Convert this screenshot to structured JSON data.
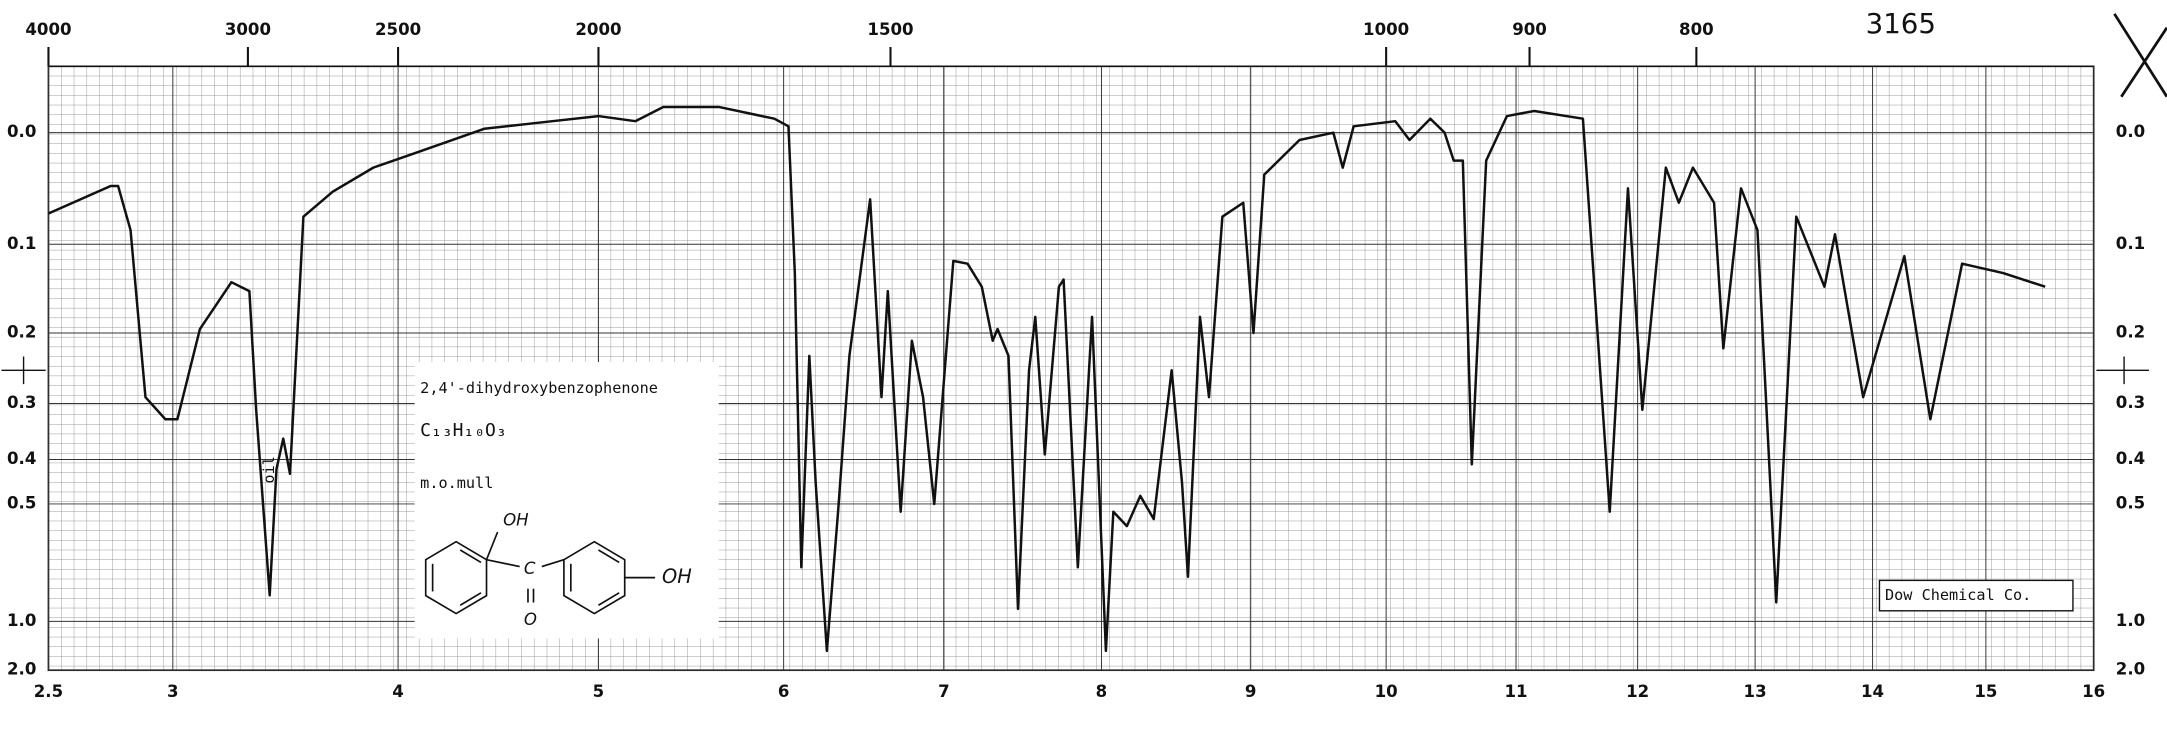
{
  "chart_data": {
    "type": "line",
    "annotations": {
      "catalog_number": "3165",
      "compound": "2,4'-dihydroxybenzophenone",
      "formula": "C₁₃H₁₀O₃",
      "sample": "m.o.mull",
      "oil_label": "oil",
      "source": "Dow Chemical Co.",
      "structure_labels": [
        "OH",
        "OH",
        "C",
        "O"
      ]
    },
    "yscale": "absorbance",
    "grid": true,
    "xlim": [
      2.5,
      16
    ],
    "xticks": [
      2.5,
      3,
      4,
      5,
      6,
      7,
      8,
      9,
      10,
      11,
      12,
      13,
      14,
      15,
      16
    ],
    "x2ticks": [
      4000,
      3000,
      2500,
      2000,
      1500,
      1000,
      900,
      800
    ],
    "ylim": [
      -0.05,
      2
    ],
    "yticks": [
      {
        "value": 0,
        "label": "0.0"
      },
      0.1,
      0.2,
      0.3,
      0.4,
      0.5,
      {
        "value": 1,
        "label": "1.0"
      },
      {
        "value": 2,
        "label": "2.0"
      }
    ],
    "x": [
      2.5,
      2.75,
      2.78,
      2.83,
      2.89,
      2.97,
      3.02,
      3.12,
      3.26,
      3.34,
      3.37,
      3.43,
      3.46,
      3.49,
      3.52,
      3.58,
      3.71,
      3.89,
      4.08,
      4.43,
      4.77,
      5.0,
      5.2,
      5.35,
      5.65,
      5.95,
      6.03,
      6.07,
      6.11,
      6.16,
      6.2,
      6.27,
      6.34,
      6.41,
      6.54,
      6.61,
      6.65,
      6.73,
      6.8,
      6.87,
      6.94,
      7.06,
      7.15,
      7.24,
      7.31,
      7.34,
      7.41,
      7.47,
      7.54,
      7.58,
      7.64,
      7.73,
      7.76,
      7.85,
      7.94,
      8.03,
      8.08,
      8.17,
      8.26,
      8.35,
      8.47,
      8.54,
      8.58,
      8.66,
      8.72,
      8.81,
      8.95,
      9.02,
      9.1,
      9.36,
      9.61,
      9.68,
      9.76,
      10.07,
      10.18,
      10.34,
      10.45,
      10.52,
      10.59,
      10.66,
      10.77,
      10.93,
      11.15,
      11.55,
      11.77,
      11.92,
      12.04,
      12.24,
      12.35,
      12.47,
      12.65,
      12.73,
      12.88,
      13.02,
      13.18,
      13.35,
      13.59,
      13.68,
      13.92,
      14.28,
      14.51,
      14.79,
      15.16,
      15.55
    ],
    "series": [
      {
        "color": "#111111",
        "values": [
          0.07,
          0.045,
          0.045,
          0.086,
          0.29,
          0.326,
          0.326,
          0.195,
          0.14,
          0.15,
          0.31,
          0.83,
          0.42,
          0.36,
          0.43,
          0.073,
          0.05,
          0.029,
          0.017,
          -0.003,
          -0.009,
          -0.013,
          -0.009,
          -0.02,
          -0.02,
          -0.011,
          -0.005,
          0.13,
          0.7,
          0.23,
          0.45,
          1.34,
          0.52,
          0.23,
          0.057,
          0.29,
          0.15,
          0.52,
          0.21,
          0.29,
          0.5,
          0.117,
          0.12,
          0.145,
          0.21,
          0.195,
          0.23,
          0.91,
          0.25,
          0.18,
          0.39,
          0.145,
          0.137,
          0.7,
          0.18,
          1.34,
          0.52,
          0.56,
          0.48,
          0.54,
          0.25,
          0.45,
          0.74,
          0.18,
          0.29,
          0.073,
          0.06,
          0.2,
          0.035,
          0.006,
          0,
          0.029,
          -0.005,
          -0.009,
          0.006,
          -0.011,
          0,
          0.023,
          0.023,
          0.41,
          0.023,
          -0.013,
          -0.017,
          -0.011,
          0.52,
          0.047,
          0.31,
          0.029,
          0.06,
          0.029,
          0.06,
          0.22,
          0.047,
          0.086,
          0.87,
          0.073,
          0.145,
          0.09,
          0.29,
          0.112,
          0.326,
          0.12,
          0.13,
          0.145
        ]
      }
    ]
  }
}
